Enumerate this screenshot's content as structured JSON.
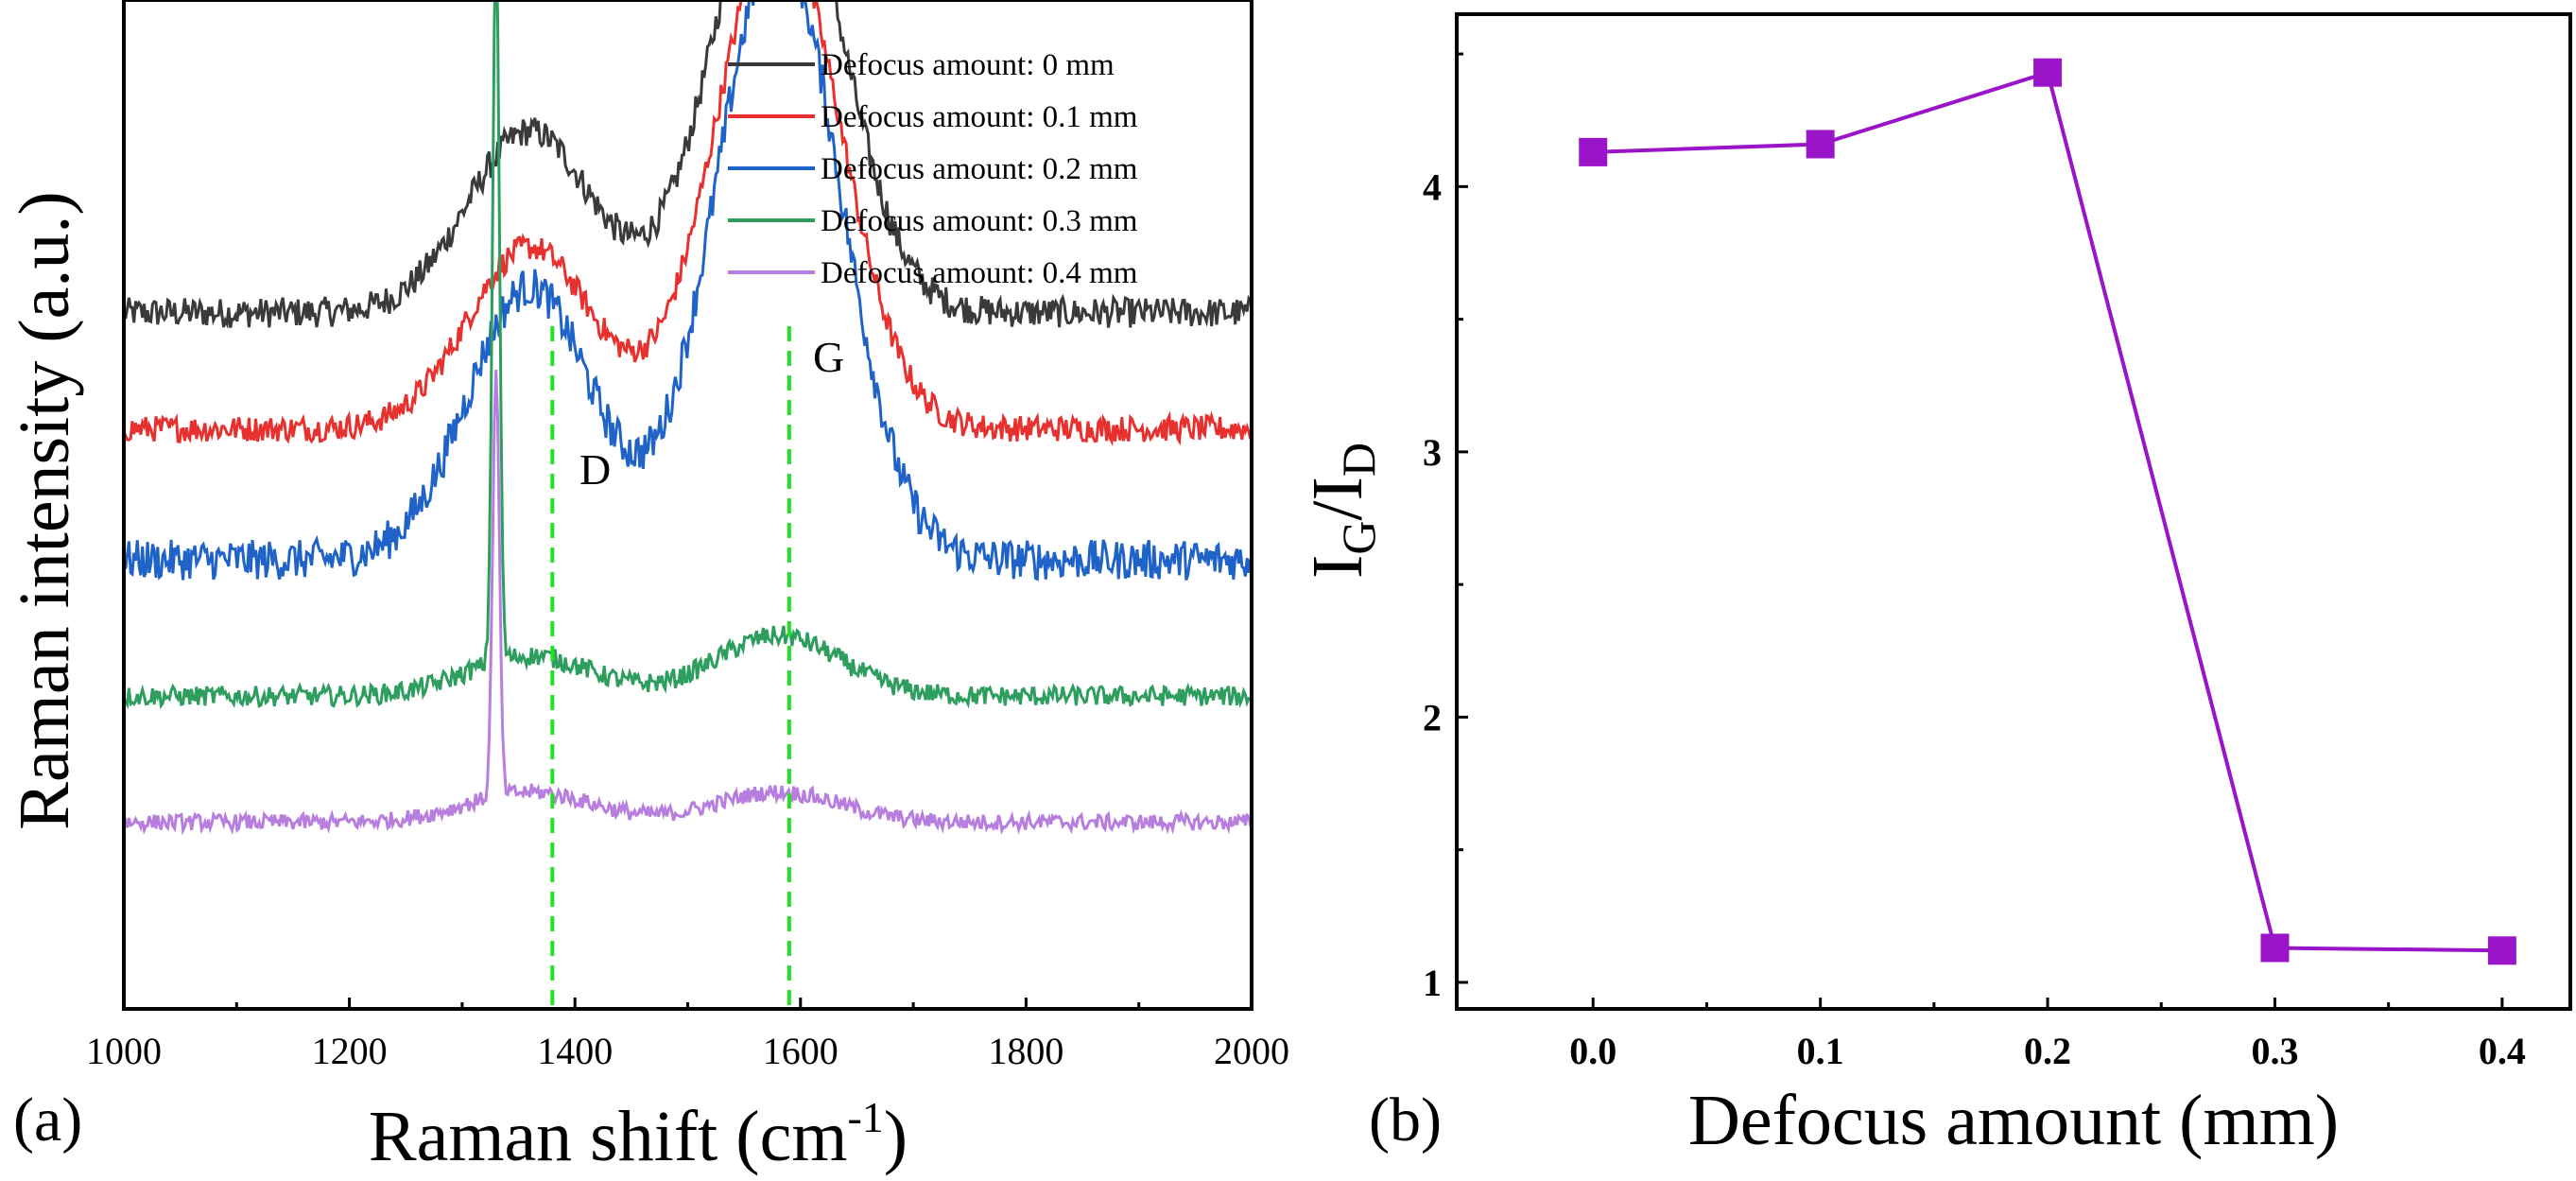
{
  "chart_data": [
    {
      "panel_label": "(a)",
      "type": "line",
      "title": "",
      "xlabel": "Raman shift (cm",
      "xlabel_sup": "-1",
      "xlabel_close": ")",
      "ylabel": "Raman intensity (a.u.)",
      "xlim": [
        1000,
        2000
      ],
      "x_ticks": [
        1000,
        1200,
        1400,
        1600,
        1800,
        2000
      ],
      "x_tick_labels": [
        "1000",
        "1200",
        "1400",
        "1600",
        "1800",
        "2000"
      ],
      "y_ticks_shown": false,
      "legend_placement": "top-right",
      "reference_lines": [
        {
          "x": 1380,
          "label": "D",
          "color": "#22e022"
        },
        {
          "x": 1590,
          "label": "G",
          "color": "#22e022"
        }
      ],
      "series": [
        {
          "name": "Defocus amount: 0 mm",
          "color": "#3a3a3a",
          "baseline": 0.69,
          "d_height": 0.18,
          "g_height": 0.47,
          "sharp_1330": 0.0,
          "noise": 0.015
        },
        {
          "name": "Defocus amount: 0.1 mm",
          "color": "#e8312f",
          "baseline": 0.575,
          "d_height": 0.18,
          "g_height": 0.5,
          "sharp_1330": 0.0,
          "noise": 0.013
        },
        {
          "name": "Defocus amount: 0.2 mm",
          "color": "#1f63c9",
          "baseline": 0.445,
          "d_height": 0.27,
          "g_height": 0.61,
          "sharp_1330": 0.0,
          "noise": 0.02
        },
        {
          "name": "Defocus amount: 0.3 mm",
          "color": "#2e9e5f",
          "baseline": 0.31,
          "d_height": 0.04,
          "g_height": 0.06,
          "sharp_1330": 1.0,
          "noise": 0.01
        },
        {
          "name": "Defocus amount: 0.4 mm",
          "color": "#b77ee0",
          "baseline": 0.185,
          "d_height": 0.03,
          "g_height": 0.03,
          "sharp_1330": 0.58,
          "noise": 0.008
        }
      ]
    },
    {
      "panel_label": "(b)",
      "type": "line",
      "title": "",
      "xlabel": "Defocus amount (mm)",
      "ylabel_main": "I",
      "ylabel_sub1": "G",
      "ylabel_sep": "/I",
      "ylabel_sub2": "D",
      "xlim": [
        -0.06,
        0.43
      ],
      "ylim": [
        0.9,
        4.65
      ],
      "x_ticks": [
        0.0,
        0.1,
        0.2,
        0.3,
        0.4
      ],
      "x_tick_labels": [
        "0.0",
        "0.1",
        "0.2",
        "0.3",
        "0.4"
      ],
      "y_ticks": [
        1,
        2,
        3,
        4
      ],
      "y_tick_labels": [
        "1",
        "2",
        "3",
        "4"
      ],
      "x": [
        0.0,
        0.1,
        0.2,
        0.3,
        0.4
      ],
      "y": [
        4.13,
        4.16,
        4.43,
        1.13,
        1.12
      ],
      "color": "#9a14c8",
      "marker": "square"
    }
  ]
}
